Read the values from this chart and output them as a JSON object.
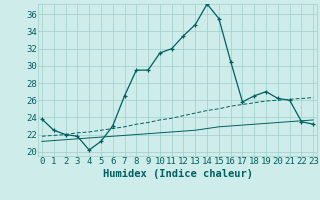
{
  "title": "",
  "xlabel": "Humidex (Indice chaleur)",
  "ylabel": "",
  "background_color": "#ceecea",
  "line_color": "#006060",
  "grid_color": "#9ececa",
  "x_ticks": [
    0,
    1,
    2,
    3,
    4,
    5,
    6,
    7,
    8,
    9,
    10,
    11,
    12,
    13,
    14,
    15,
    16,
    17,
    18,
    19,
    20,
    21,
    22,
    23
  ],
  "y_ticks": [
    20,
    22,
    24,
    26,
    28,
    30,
    32,
    34,
    36
  ],
  "xlim": [
    -0.3,
    23.3
  ],
  "ylim": [
    19.5,
    37.2
  ],
  "series1_x": [
    0,
    1,
    2,
    3,
    4,
    5,
    6,
    7,
    8,
    9,
    10,
    11,
    12,
    13,
    14,
    15,
    16,
    17,
    18,
    19,
    20,
    21,
    22,
    23
  ],
  "series1_y": [
    23.8,
    22.5,
    22.0,
    21.8,
    20.2,
    21.2,
    23.0,
    26.5,
    29.5,
    29.5,
    31.5,
    32.0,
    33.5,
    34.8,
    37.2,
    35.5,
    30.5,
    25.8,
    26.5,
    27.0,
    26.2,
    26.0,
    23.5,
    23.2
  ],
  "series2_x": [
    0,
    1,
    2,
    3,
    4,
    5,
    6,
    7,
    8,
    9,
    10,
    11,
    12,
    13,
    14,
    15,
    16,
    17,
    18,
    19,
    20,
    21,
    22,
    23
  ],
  "series2_y": [
    21.8,
    21.9,
    22.0,
    22.2,
    22.3,
    22.5,
    22.7,
    22.9,
    23.2,
    23.4,
    23.7,
    23.9,
    24.2,
    24.5,
    24.8,
    25.0,
    25.3,
    25.5,
    25.7,
    25.9,
    26.0,
    26.1,
    26.2,
    26.3
  ],
  "series3_x": [
    0,
    1,
    2,
    3,
    4,
    5,
    6,
    7,
    8,
    9,
    10,
    11,
    12,
    13,
    14,
    15,
    16,
    17,
    18,
    19,
    20,
    21,
    22,
    23
  ],
  "series3_y": [
    21.2,
    21.3,
    21.4,
    21.5,
    21.6,
    21.7,
    21.8,
    21.9,
    22.0,
    22.1,
    22.2,
    22.3,
    22.4,
    22.5,
    22.7,
    22.9,
    23.0,
    23.1,
    23.2,
    23.3,
    23.4,
    23.5,
    23.6,
    23.7
  ],
  "tick_fontsize": 6.5,
  "xlabel_fontsize": 7.5
}
